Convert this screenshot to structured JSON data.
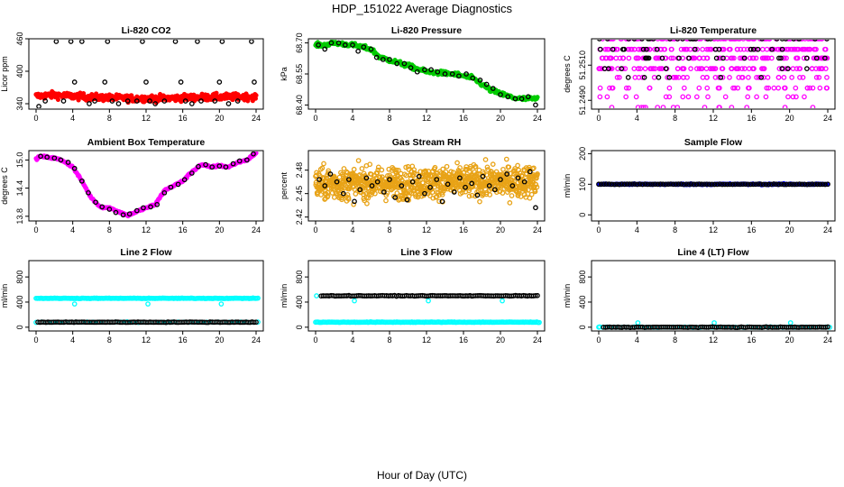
{
  "figure": {
    "title": "HDP_151022  Average Diagnostics",
    "xlabel": "Hour of Day (UTC)"
  },
  "colors": {
    "black": "#000000",
    "red": "#ff0000",
    "green": "#00cc00",
    "magenta": "#ff00ff",
    "orange": "#e8a317",
    "blue": "#0000ff",
    "cyan": "#00ffff"
  },
  "chart_data": [
    {
      "type": "scatter",
      "title": "Li-820 CO2",
      "ylabel": "Licor ppm",
      "xlim": [
        0,
        24
      ],
      "ylim": [
        330,
        460
      ],
      "xticks": [
        "0",
        "4",
        "8",
        "12",
        "16",
        "20",
        "24"
      ],
      "yticks": [
        "340",
        "400",
        "460"
      ],
      "series": [
        {
          "name": "raw",
          "color": "red",
          "style": "dense",
          "trend": [
            [
              0,
              354
            ],
            [
              2,
              356
            ],
            [
              6,
              352
            ],
            [
              10,
              350
            ],
            [
              14,
              350
            ],
            [
              18,
              352
            ],
            [
              24,
              353
            ]
          ],
          "spread": 6,
          "n": 400
        },
        {
          "name": "avg",
          "color": "black",
          "style": "open",
          "x": [
            0.3,
            1,
            2.2,
            3,
            3.8,
            4.2,
            5,
            5.8,
            6.4,
            7.5,
            7.8,
            8.3,
            9,
            10,
            11,
            11.6,
            12,
            12.4,
            13,
            14,
            15.2,
            15.8,
            16.3,
            17,
            17.6,
            18,
            19.5,
            20,
            20.3,
            21,
            22,
            23.5,
            23.8
          ],
          "y": [
            335,
            345,
            455,
            345,
            455,
            380,
            455,
            340,
            345,
            380,
            455,
            345,
            340,
            345,
            345,
            455,
            380,
            345,
            340,
            345,
            455,
            380,
            345,
            340,
            455,
            345,
            345,
            380,
            455,
            340,
            345,
            455,
            380
          ]
        }
      ]
    },
    {
      "type": "scatter",
      "title": "Li-820 Pressure",
      "ylabel": "kPa",
      "xlim": [
        0,
        24
      ],
      "ylim": [
        68.38,
        68.72
      ],
      "xticks": [
        "0",
        "4",
        "8",
        "12",
        "16",
        "20",
        "24"
      ],
      "yticks": [
        "68.40",
        "68.55",
        "68.70"
      ],
      "series": [
        {
          "name": "raw",
          "color": "green",
          "style": "dense",
          "trend": [
            [
              0,
              68.69
            ],
            [
              1,
              68.69
            ],
            [
              2,
              68.7
            ],
            [
              4,
              68.69
            ],
            [
              6,
              68.67
            ],
            [
              7,
              68.63
            ],
            [
              10,
              68.59
            ],
            [
              12,
              68.56
            ],
            [
              15,
              68.55
            ],
            [
              17,
              68.53
            ],
            [
              18,
              68.5
            ],
            [
              19,
              68.47
            ],
            [
              21,
              68.44
            ],
            [
              22,
              68.43
            ],
            [
              24,
              68.43
            ]
          ],
          "spread": 0.01,
          "n": 300
        },
        {
          "name": "avg",
          "color": "black",
          "style": "open",
          "x": [
            0.3,
            1,
            1.7,
            2.5,
            3.2,
            4,
            4.6,
            5.2,
            6,
            6.6,
            7.3,
            8,
            8.8,
            9.6,
            10.3,
            11,
            11.8,
            12.5,
            13.2,
            14,
            14.8,
            15.5,
            16.3,
            17,
            17.8,
            18.5,
            19.2,
            20,
            20.8,
            21.6,
            22.3,
            23,
            23.8
          ],
          "y": [
            68.69,
            68.67,
            68.7,
            68.7,
            68.69,
            68.69,
            68.66,
            68.68,
            68.67,
            68.63,
            68.62,
            68.62,
            68.6,
            68.6,
            68.58,
            68.56,
            68.57,
            68.57,
            68.56,
            68.55,
            68.55,
            68.54,
            68.55,
            68.53,
            68.52,
            68.5,
            68.48,
            68.45,
            68.44,
            68.43,
            68.43,
            68.44,
            68.4
          ]
        }
      ]
    },
    {
      "type": "scatter",
      "title": "Li-820 Temperature",
      "ylabel": "degrees C",
      "xlim": [
        0,
        24
      ],
      "ylim": [
        51.2485,
        51.2525
      ],
      "xticks": [
        "0",
        "4",
        "8",
        "12",
        "16",
        "20",
        "24"
      ],
      "yticks": [
        "51.2490",
        "51.2510"
      ],
      "series": [
        {
          "name": "raw",
          "color": "magenta",
          "style": "levels",
          "levels": [
            51.2525,
            51.2519,
            51.2514,
            51.2508,
            51.2503,
            51.2497,
            51.2492,
            51.2486
          ],
          "weights": [
            6,
            6,
            5,
            5,
            3,
            2,
            1,
            1
          ],
          "n": 500
        },
        {
          "name": "avg",
          "color": "black",
          "style": "levels",
          "levels": [
            51.2525,
            51.2519,
            51.2514,
            51.2508,
            51.2503
          ],
          "weights": [
            4,
            4,
            3,
            2,
            1
          ],
          "n": 70
        }
      ]
    },
    {
      "type": "scatter",
      "title": "Ambient Box Temperature",
      "ylabel": "degrees C",
      "xlim": [
        0,
        24
      ],
      "ylim": [
        13.7,
        15.2
      ],
      "xticks": [
        "0",
        "4",
        "8",
        "12",
        "16",
        "20",
        "24"
      ],
      "yticks": [
        "13.8",
        "14.4",
        "15.0"
      ],
      "series": [
        {
          "name": "raw",
          "color": "magenta",
          "style": "dense",
          "trend": [
            [
              0,
              15.02
            ],
            [
              0.5,
              15.08
            ],
            [
              2,
              15.04
            ],
            [
              3,
              14.98
            ],
            [
              4,
              14.85
            ],
            [
              5,
              14.55
            ],
            [
              6,
              14.2
            ],
            [
              7,
              14.0
            ],
            [
              8,
              13.98
            ],
            [
              9,
              13.9
            ],
            [
              10,
              13.82
            ],
            [
              11,
              13.9
            ],
            [
              12,
              13.98
            ],
            [
              13,
              14.05
            ],
            [
              14,
              14.35
            ],
            [
              15,
              14.45
            ],
            [
              16,
              14.55
            ],
            [
              17,
              14.75
            ],
            [
              18,
              14.9
            ],
            [
              19,
              14.85
            ],
            [
              20,
              14.88
            ],
            [
              21,
              14.85
            ],
            [
              22,
              14.95
            ],
            [
              23,
              15.0
            ],
            [
              24,
              15.15
            ]
          ],
          "spread": 0.02,
          "n": 300
        },
        {
          "name": "avg",
          "color": "black",
          "style": "open",
          "x": [
            0.5,
            1.2,
            2,
            2.7,
            3.5,
            4.2,
            5,
            5.7,
            6.5,
            7.2,
            8,
            8.7,
            9.5,
            10.2,
            11,
            11.7,
            12.5,
            13.2,
            14,
            14.7,
            15.5,
            16.2,
            17,
            17.7,
            18.5,
            19.2,
            20,
            20.7,
            21.5,
            22.2,
            23,
            23.7
          ],
          "y": [
            15.08,
            15.06,
            15.04,
            15.0,
            14.95,
            14.82,
            14.55,
            14.3,
            14.1,
            14.0,
            13.95,
            13.88,
            13.83,
            13.85,
            13.92,
            13.98,
            14.0,
            14.05,
            14.3,
            14.42,
            14.48,
            14.58,
            14.72,
            14.86,
            14.9,
            14.85,
            14.87,
            14.85,
            14.92,
            14.98,
            15.0,
            15.13
          ]
        }
      ]
    },
    {
      "type": "scatter",
      "title": "Gas Stream RH",
      "ylabel": "percent",
      "xlim": [
        0,
        24
      ],
      "ylim": [
        2.415,
        2.505
      ],
      "xticks": [
        "0",
        "4",
        "8",
        "12",
        "16",
        "20",
        "24"
      ],
      "yticks": [
        "2.42",
        "2.45",
        "2.48"
      ],
      "series": [
        {
          "name": "raw",
          "color": "orange",
          "style": "dense",
          "trend": [
            [
              0,
              2.462
            ],
            [
              24,
              2.466
            ]
          ],
          "spread": 0.02,
          "n": 900
        },
        {
          "name": "avg",
          "color": "black",
          "style": "open",
          "x": [
            0.4,
            1,
            1.6,
            2.3,
            3,
            3.6,
            4.2,
            4.8,
            5.5,
            6.1,
            6.7,
            7.4,
            8,
            8.6,
            9.3,
            9.9,
            10.5,
            11.2,
            11.8,
            12.4,
            13.1,
            13.7,
            14.3,
            15,
            15.6,
            16.2,
            16.9,
            17.5,
            18.1,
            18.8,
            19.4,
            20,
            20.7,
            21.3,
            21.9,
            22.6,
            23.2,
            23.8
          ],
          "y": [
            2.468,
            2.46,
            2.475,
            2.465,
            2.45,
            2.468,
            2.44,
            2.455,
            2.47,
            2.46,
            2.465,
            2.452,
            2.468,
            2.445,
            2.46,
            2.442,
            2.465,
            2.472,
            2.45,
            2.458,
            2.468,
            2.44,
            2.462,
            2.452,
            2.47,
            2.458,
            2.463,
            2.448,
            2.472,
            2.46,
            2.455,
            2.468,
            2.475,
            2.46,
            2.47,
            2.465,
            2.478,
            2.432
          ]
        }
      ]
    },
    {
      "type": "scatter",
      "title": "Sample Flow",
      "ylabel": "ml/min",
      "xlim": [
        0,
        24
      ],
      "ylim": [
        -20,
        210
      ],
      "xticks": [
        "0",
        "4",
        "8",
        "12",
        "16",
        "20",
        "24"
      ],
      "yticks": [
        "0",
        "100",
        "200"
      ],
      "series": [
        {
          "name": "raw",
          "color": "blue",
          "style": "dense",
          "trend": [
            [
              0,
              100
            ],
            [
              24,
              100
            ]
          ],
          "spread": 2,
          "n": 240
        },
        {
          "name": "avg",
          "color": "black",
          "style": "open-line",
          "y0": 100,
          "n": 90
        }
      ]
    },
    {
      "type": "scatter",
      "title": "Line 2 Flow",
      "ylabel": "ml/min",
      "xlim": [
        0,
        24
      ],
      "ylim": [
        -60,
        1060
      ],
      "xticks": [
        "0",
        "4",
        "8",
        "12",
        "16",
        "20",
        "24"
      ],
      "yticks": [
        "0",
        "400",
        "800"
      ],
      "series": [
        {
          "name": "cyan",
          "color": "cyan",
          "style": "line",
          "y0": 460,
          "from": 0,
          "to": 24.2,
          "n": 180,
          "extra": [
            [
              4.2,
              370
            ],
            [
              12.2,
              370
            ],
            [
              20.2,
              370
            ]
          ]
        },
        {
          "name": "cyan-low",
          "color": "cyan",
          "style": "line",
          "y0": 80,
          "from": 0,
          "to": 24.2,
          "n": 40
        },
        {
          "name": "black",
          "color": "black",
          "style": "open-line",
          "y0": 80,
          "from": 0.2,
          "to": 24,
          "n": 110
        }
      ]
    },
    {
      "type": "scatter",
      "title": "Line 3 Flow",
      "ylabel": "ml/min",
      "xlim": [
        0,
        24
      ],
      "ylim": [
        -60,
        1060
      ],
      "xticks": [
        "0",
        "4",
        "8",
        "12",
        "16",
        "20",
        "24"
      ],
      "yticks": [
        "0",
        "400",
        "800"
      ],
      "series": [
        {
          "name": "cyan",
          "color": "cyan",
          "style": "line",
          "y0": 80,
          "from": 0,
          "to": 24.2,
          "n": 180,
          "extra": [
            [
              0.1,
              500
            ],
            [
              4.2,
              420
            ],
            [
              12.2,
              420
            ],
            [
              20.2,
              420
            ]
          ]
        },
        {
          "name": "black",
          "color": "black",
          "style": "open-line",
          "y0": 500,
          "from": 0.6,
          "to": 24,
          "n": 110
        }
      ]
    },
    {
      "type": "scatter",
      "title": "Line 4 (LT) Flow",
      "ylabel": "ml/min",
      "xlim": [
        0,
        24
      ],
      "ylim": [
        -60,
        1060
      ],
      "xticks": [
        "0",
        "4",
        "8",
        "12",
        "16",
        "20",
        "24"
      ],
      "yticks": [
        "0",
        "400",
        "800"
      ],
      "series": [
        {
          "name": "cyan",
          "color": "cyan",
          "style": "line",
          "y0": 0,
          "from": 0,
          "to": 24.2,
          "n": 60,
          "extra": [
            [
              0.1,
              5
            ],
            [
              4.1,
              70
            ],
            [
              12.1,
              70
            ],
            [
              20.1,
              70
            ]
          ]
        },
        {
          "name": "black",
          "color": "black",
          "style": "open-line",
          "y0": 0,
          "from": 0.5,
          "to": 24,
          "n": 110
        }
      ]
    }
  ]
}
